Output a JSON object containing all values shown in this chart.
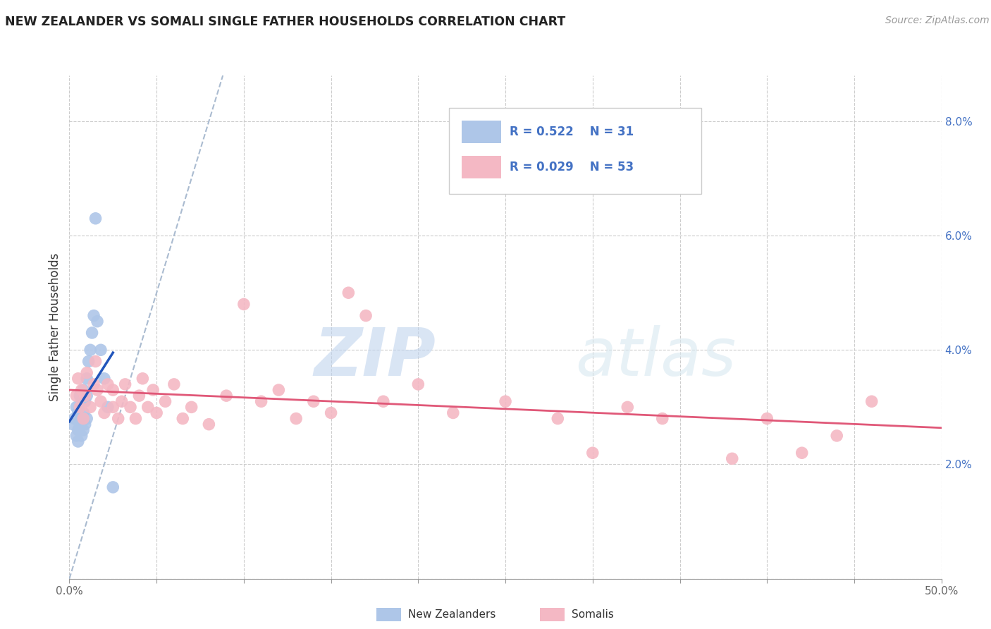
{
  "title": "NEW ZEALANDER VS SOMALI SINGLE FATHER HOUSEHOLDS CORRELATION CHART",
  "source": "Source: ZipAtlas.com",
  "ylabel": "Single Father Households",
  "xlim": [
    0.0,
    0.5
  ],
  "ylim": [
    0.0,
    0.088
  ],
  "xticks": [
    0.0,
    0.05,
    0.1,
    0.15,
    0.2,
    0.25,
    0.3,
    0.35,
    0.4,
    0.45,
    0.5
  ],
  "yticks": [
    0.0,
    0.02,
    0.04,
    0.06,
    0.08
  ],
  "ytick_labels": [
    "",
    "2.0%",
    "4.0%",
    "6.0%",
    "8.0%"
  ],
  "xtick_labels_major": [
    "0.0%",
    "",
    "",
    "",
    "",
    "",
    "",
    "",
    "",
    "",
    "50.0%"
  ],
  "legend_r1": "R = 0.522",
  "legend_n1": "N = 31",
  "legend_r2": "R = 0.029",
  "legend_n2": "N = 53",
  "nz_color": "#aec6e8",
  "somali_color": "#f4b8c4",
  "nz_line_color": "#2255bb",
  "somali_line_color": "#e05878",
  "trend_dash_color": "#aabbd0",
  "watermark_zip": "ZIP",
  "watermark_atlas": "atlas",
  "nz_points_x": [
    0.002,
    0.003,
    0.004,
    0.004,
    0.005,
    0.005,
    0.005,
    0.006,
    0.006,
    0.006,
    0.007,
    0.007,
    0.007,
    0.008,
    0.008,
    0.008,
    0.009,
    0.009,
    0.01,
    0.01,
    0.01,
    0.011,
    0.012,
    0.013,
    0.014,
    0.015,
    0.016,
    0.018,
    0.02,
    0.022,
    0.025
  ],
  "nz_points_y": [
    0.027,
    0.028,
    0.025,
    0.03,
    0.024,
    0.026,
    0.029,
    0.027,
    0.03,
    0.032,
    0.025,
    0.028,
    0.031,
    0.026,
    0.029,
    0.033,
    0.027,
    0.031,
    0.028,
    0.032,
    0.035,
    0.038,
    0.04,
    0.043,
    0.046,
    0.063,
    0.045,
    0.04,
    0.035,
    0.03,
    0.016
  ],
  "somali_points_x": [
    0.004,
    0.005,
    0.006,
    0.007,
    0.008,
    0.009,
    0.01,
    0.012,
    0.014,
    0.015,
    0.016,
    0.018,
    0.02,
    0.022,
    0.025,
    0.025,
    0.028,
    0.03,
    0.032,
    0.035,
    0.038,
    0.04,
    0.042,
    0.045,
    0.048,
    0.05,
    0.055,
    0.06,
    0.065,
    0.07,
    0.08,
    0.09,
    0.1,
    0.11,
    0.12,
    0.13,
    0.14,
    0.15,
    0.16,
    0.17,
    0.18,
    0.2,
    0.22,
    0.25,
    0.28,
    0.3,
    0.32,
    0.34,
    0.38,
    0.4,
    0.42,
    0.44,
    0.46
  ],
  "somali_points_y": [
    0.032,
    0.035,
    0.03,
    0.033,
    0.028,
    0.032,
    0.036,
    0.03,
    0.034,
    0.038,
    0.033,
    0.031,
    0.029,
    0.034,
    0.03,
    0.033,
    0.028,
    0.031,
    0.034,
    0.03,
    0.028,
    0.032,
    0.035,
    0.03,
    0.033,
    0.029,
    0.031,
    0.034,
    0.028,
    0.03,
    0.027,
    0.032,
    0.048,
    0.031,
    0.033,
    0.028,
    0.031,
    0.029,
    0.05,
    0.046,
    0.031,
    0.034,
    0.029,
    0.031,
    0.028,
    0.022,
    0.03,
    0.028,
    0.021,
    0.028,
    0.022,
    0.025,
    0.031
  ]
}
